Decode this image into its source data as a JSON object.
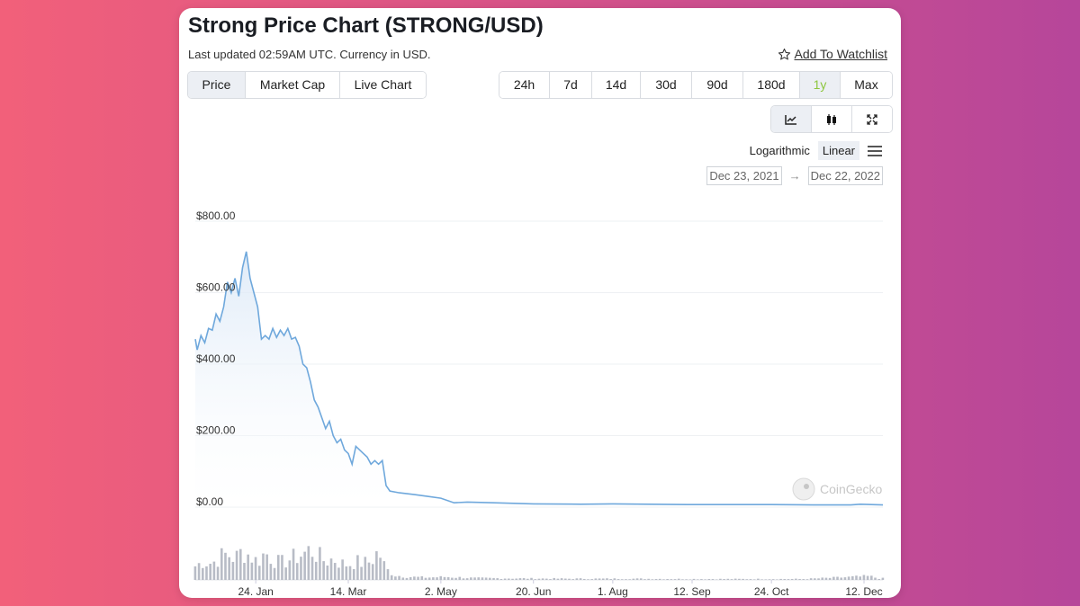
{
  "header": {
    "title": "Strong Price Chart (STRONG/USD)",
    "subtitle": "Last updated 02:59AM UTC. Currency in USD.",
    "watchlist_label": "Add To Watchlist"
  },
  "metric_tabs": [
    {
      "label": "Price",
      "active": true
    },
    {
      "label": "Market Cap",
      "active": false
    },
    {
      "label": "Live Chart",
      "active": false
    }
  ],
  "range_tabs": [
    {
      "label": "24h",
      "active": false
    },
    {
      "label": "7d",
      "active": false
    },
    {
      "label": "14d",
      "active": false
    },
    {
      "label": "30d",
      "active": false
    },
    {
      "label": "90d",
      "active": false
    },
    {
      "label": "180d",
      "active": false
    },
    {
      "label": "1y",
      "active": true
    },
    {
      "label": "Max",
      "active": false
    }
  ],
  "chart_tools": [
    {
      "icon": "line-chart-icon",
      "active": true
    },
    {
      "icon": "candlestick-icon",
      "active": false
    },
    {
      "icon": "fullscreen-icon",
      "active": false
    }
  ],
  "scale": {
    "logarithmic_label": "Logarithmic",
    "linear_label": "Linear",
    "active": "Linear"
  },
  "date_range": {
    "from": "Dec 23, 2021",
    "to": "Dec 22, 2022"
  },
  "watermark": "CoinGecko",
  "colors": {
    "line": "#6fa8dc",
    "fill_top": "#dce9f7",
    "volume": "#b8bcc6",
    "active_range": "#8dc63f"
  },
  "chart_data": {
    "type": "area",
    "title": "",
    "xlabel": "",
    "ylabel": "",
    "ylim": [
      0,
      800
    ],
    "xlim": [
      "2021-12-23",
      "2022-12-22"
    ],
    "y_ticks": [
      "$0.00",
      "$200.00",
      "$400.00",
      "$600.00",
      "$800.00"
    ],
    "x_tick_labels": [
      "24. Jan",
      "14. Mar",
      "2. May",
      "20. Jun",
      "1. Aug",
      "12. Sep",
      "24. Oct",
      "12. Dec"
    ],
    "x_tick_dates": [
      "2022-01-24",
      "2022-03-14",
      "2022-05-02",
      "2022-06-20",
      "2022-08-01",
      "2022-09-12",
      "2022-10-24",
      "2022-12-12"
    ],
    "grid": true,
    "series": [
      {
        "values": [
          [
            "2021-12-23",
            470
          ],
          [
            "2021-12-24",
            440
          ],
          [
            "2021-12-26",
            480
          ],
          [
            "2021-12-28",
            460
          ],
          [
            "2021-12-30",
            500
          ],
          [
            "2022-01-01",
            495
          ],
          [
            "2022-01-03",
            540
          ],
          [
            "2022-01-05",
            520
          ],
          [
            "2022-01-07",
            560
          ],
          [
            "2022-01-09",
            630
          ],
          [
            "2022-01-11",
            600
          ],
          [
            "2022-01-13",
            640
          ],
          [
            "2022-01-15",
            590
          ],
          [
            "2022-01-17",
            670
          ],
          [
            "2022-01-19",
            715
          ],
          [
            "2022-01-21",
            640
          ],
          [
            "2022-01-23",
            600
          ],
          [
            "2022-01-25",
            560
          ],
          [
            "2022-01-27",
            470
          ],
          [
            "2022-01-29",
            480
          ],
          [
            "2022-01-31",
            470
          ],
          [
            "2022-02-02",
            500
          ],
          [
            "2022-02-04",
            475
          ],
          [
            "2022-02-06",
            495
          ],
          [
            "2022-02-08",
            480
          ],
          [
            "2022-02-10",
            500
          ],
          [
            "2022-02-12",
            470
          ],
          [
            "2022-02-14",
            475
          ],
          [
            "2022-02-16",
            450
          ],
          [
            "2022-02-18",
            400
          ],
          [
            "2022-02-20",
            390
          ],
          [
            "2022-02-22",
            350
          ],
          [
            "2022-02-24",
            300
          ],
          [
            "2022-02-26",
            280
          ],
          [
            "2022-02-28",
            250
          ],
          [
            "2022-03-02",
            220
          ],
          [
            "2022-03-04",
            240
          ],
          [
            "2022-03-06",
            200
          ],
          [
            "2022-03-08",
            180
          ],
          [
            "2022-03-10",
            190
          ],
          [
            "2022-03-12",
            160
          ],
          [
            "2022-03-14",
            150
          ],
          [
            "2022-03-16",
            120
          ],
          [
            "2022-03-18",
            170
          ],
          [
            "2022-03-20",
            160
          ],
          [
            "2022-03-22",
            150
          ],
          [
            "2022-03-24",
            140
          ],
          [
            "2022-03-26",
            120
          ],
          [
            "2022-03-28",
            130
          ],
          [
            "2022-03-30",
            120
          ],
          [
            "2022-04-01",
            130
          ],
          [
            "2022-04-03",
            60
          ],
          [
            "2022-04-05",
            45
          ],
          [
            "2022-04-10",
            40
          ],
          [
            "2022-04-18",
            35
          ],
          [
            "2022-04-25",
            30
          ],
          [
            "2022-05-02",
            25
          ],
          [
            "2022-05-09",
            12
          ],
          [
            "2022-05-16",
            14
          ],
          [
            "2022-05-30",
            12
          ],
          [
            "2022-06-20",
            9
          ],
          [
            "2022-07-15",
            8
          ],
          [
            "2022-08-01",
            9
          ],
          [
            "2022-08-20",
            8
          ],
          [
            "2022-09-12",
            7
          ],
          [
            "2022-10-01",
            7
          ],
          [
            "2022-10-24",
            7
          ],
          [
            "2022-11-15",
            6
          ],
          [
            "2022-12-05",
            6
          ],
          [
            "2022-12-10",
            8
          ],
          [
            "2022-12-22",
            6
          ]
        ]
      }
    ],
    "volume": [
      [
        "2021-12-23",
        0.45
      ],
      [
        "2021-12-27",
        0.6
      ],
      [
        "2022-01-01",
        0.55
      ],
      [
        "2022-01-05",
        0.75
      ],
      [
        "2022-01-09",
        0.85
      ],
      [
        "2022-01-13",
        0.7
      ],
      [
        "2022-01-17",
        0.95
      ],
      [
        "2022-01-21",
        0.8
      ],
      [
        "2022-01-25",
        0.6
      ],
      [
        "2022-01-29",
        0.9
      ],
      [
        "2022-02-02",
        0.7
      ],
      [
        "2022-02-06",
        0.55
      ],
      [
        "2022-02-10",
        0.65
      ],
      [
        "2022-02-14",
        0.75
      ],
      [
        "2022-02-18",
        0.85
      ],
      [
        "2022-02-22",
        1.0
      ],
      [
        "2022-02-26",
        0.8
      ],
      [
        "2022-03-02",
        0.6
      ],
      [
        "2022-03-06",
        0.7
      ],
      [
        "2022-03-10",
        0.55
      ],
      [
        "2022-03-14",
        0.5
      ],
      [
        "2022-03-18",
        0.6
      ],
      [
        "2022-03-22",
        0.55
      ],
      [
        "2022-03-26",
        0.6
      ],
      [
        "2022-03-30",
        0.95
      ],
      [
        "2022-04-03",
        0.35
      ],
      [
        "2022-04-08",
        0.15
      ],
      [
        "2022-04-15",
        0.1
      ],
      [
        "2022-04-25",
        0.08
      ],
      [
        "2022-05-05",
        0.1
      ],
      [
        "2022-05-20",
        0.06
      ],
      [
        "2022-06-10",
        0.05
      ],
      [
        "2022-07-10",
        0.04
      ],
      [
        "2022-08-10",
        0.04
      ],
      [
        "2022-09-10",
        0.03
      ],
      [
        "2022-10-10",
        0.03
      ],
      [
        "2022-11-10",
        0.03
      ],
      [
        "2022-12-15",
        0.12
      ],
      [
        "2022-12-20",
        0.05
      ]
    ]
  }
}
